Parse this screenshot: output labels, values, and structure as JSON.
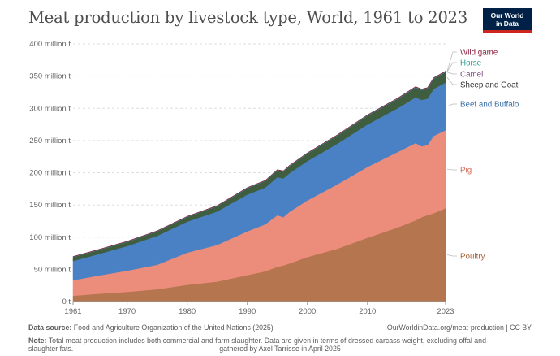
{
  "header": {
    "title": "Meat production by livestock type, World, 1961 to 2023",
    "logo_line1": "Our World",
    "logo_line2": "in Data"
  },
  "footer": {
    "source_label": "Data source:",
    "source_text": "Food and Agriculture Organization of the United Nations (2025)",
    "url_license": "OurWorldinData.org/meat-production | CC BY",
    "note_label": "Note:",
    "note_text": "Total meat production includes both commercial and farm slaughter. Data are given in terms of dressed carcass weight, excluding offal and slaughter fats.",
    "credit": "gathered by Axel Tarrisse in April 2025"
  },
  "chart_data": {
    "type": "area",
    "stacked": true,
    "x": [
      1961,
      1965,
      1970,
      1975,
      1980,
      1985,
      1990,
      1993,
      1995,
      1996,
      1997,
      2000,
      2005,
      2010,
      2015,
      2018,
      2019,
      2020,
      2021,
      2023
    ],
    "x_ticks": [
      "1961",
      "1970",
      "1980",
      "1990",
      "2000",
      "2010",
      "2023"
    ],
    "y_ticks": [
      "0 t",
      "50 million t",
      "100 million t",
      "150 million t",
      "200 million t",
      "250 million t",
      "300 million t",
      "350 million t",
      "400 million t"
    ],
    "ylim": [
      0,
      400000000
    ],
    "grid": true,
    "series": [
      {
        "name": "Poultry",
        "color": "#b5754e",
        "values": [
          9000000,
          12000000,
          15000000,
          19000000,
          26000000,
          31000000,
          41000000,
          47000000,
          54000000,
          56000000,
          59000000,
          69000000,
          82000000,
          99000000,
          115000000,
          126000000,
          131000000,
          134000000,
          137000000,
          145000000
        ]
      },
      {
        "name": "Pig",
        "color": "#ec8c7b",
        "values": [
          24000000,
          28000000,
          33000000,
          38000000,
          50000000,
          57000000,
          68000000,
          73000000,
          80000000,
          75000000,
          80000000,
          88000000,
          100000000,
          110000000,
          117000000,
          120000000,
          110000000,
          109000000,
          120000000,
          121000000
        ]
      },
      {
        "name": "Beef and Buffalo",
        "color": "#4a81c5",
        "values": [
          30000000,
          33000000,
          38000000,
          45000000,
          48000000,
          52000000,
          57000000,
          57000000,
          59000000,
          60000000,
          60000000,
          61000000,
          63000000,
          66000000,
          68000000,
          71000000,
          72000000,
          72000000,
          73000000,
          74000000
        ]
      },
      {
        "name": "Sheep and Goat",
        "color": "#3f5d3f",
        "values": [
          6000000,
          6200000,
          6500000,
          6800000,
          7200000,
          8000000,
          9800000,
          10000000,
          10500000,
          10700000,
          10900000,
          11500000,
          12500000,
          13400000,
          14200000,
          15000000,
          15200000,
          15400000,
          15700000,
          16000000
        ]
      },
      {
        "name": "Camel",
        "color": "#7d4c7f",
        "values": [
          150000,
          160000,
          170000,
          190000,
          210000,
          230000,
          250000,
          260000,
          270000,
          280000,
          290000,
          320000,
          370000,
          420000,
          470000,
          500000,
          510000,
          520000,
          530000,
          550000
        ]
      },
      {
        "name": "Horse",
        "color": "#2a9d8f",
        "values": [
          550000,
          560000,
          580000,
          580000,
          590000,
          600000,
          610000,
          620000,
          630000,
          630000,
          640000,
          660000,
          700000,
          740000,
          760000,
          770000,
          770000,
          780000,
          780000,
          790000
        ]
      },
      {
        "name": "Wild game",
        "color": "#8a1f3e",
        "values": [
          300000,
          310000,
          320000,
          330000,
          340000,
          350000,
          360000,
          370000,
          380000,
          380000,
          390000,
          400000,
          420000,
          440000,
          460000,
          470000,
          470000,
          480000,
          480000,
          490000
        ]
      }
    ],
    "labels": [
      {
        "series": "Wild game",
        "text": "Wild game",
        "color": "#8a1f3e"
      },
      {
        "series": "Horse",
        "text": "Horse",
        "color": "#2a9d8f"
      },
      {
        "series": "Camel",
        "text": "Camel",
        "color": "#7d4c7f"
      },
      {
        "series": "Sheep and Goat",
        "text": "Sheep and Goat",
        "color": "#333333"
      },
      {
        "series": "Beef and Buffalo",
        "text": "Beef and Buffalo",
        "color": "#3d6ea8"
      },
      {
        "series": "Pig",
        "text": "Pig",
        "color": "#d46b59"
      },
      {
        "series": "Poultry",
        "text": "Poultry",
        "color": "#a55f3a"
      }
    ]
  }
}
